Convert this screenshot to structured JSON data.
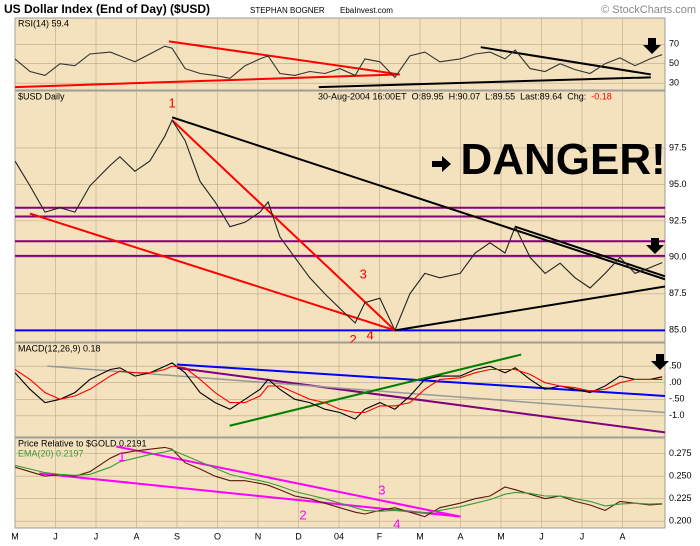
{
  "header": {
    "title": "US Dollar Index (End of Day) ($USD)",
    "author": "STEPHAN BOGNER",
    "site": "EbaInvest.com",
    "copyright": "© StockCharts.com"
  },
  "chart_data": [
    {
      "type": "line",
      "title": "RSI(14) 59.4",
      "x": [
        0,
        0.37,
        0.74,
        1.11,
        1.48,
        1.85,
        2.35,
        2.59,
        2.96,
        3.33,
        3.7,
        3.88,
        4.2,
        4.57,
        4.94,
        5.31,
        5.68,
        6.05,
        6.25,
        6.54,
        6.91,
        7.28,
        7.65,
        8.02,
        8.4,
        8.64,
        9.01,
        9.38,
        9.75,
        10.12,
        10.49,
        10.99,
        11.36,
        11.73,
        12.1,
        12.35,
        12.72,
        13.09,
        13.46,
        13.83,
        14.2,
        14.57,
        14.94,
        15.31,
        15.68,
        15.98
      ],
      "series": [
        {
          "color": "#333333",
          "values": [
            55,
            42,
            38,
            50,
            48,
            60,
            62,
            58,
            52,
            60,
            68,
            66,
            45,
            40,
            38,
            35,
            48,
            55,
            58,
            40,
            38,
            42,
            40,
            45,
            38,
            55,
            52,
            36,
            58,
            62,
            52,
            55,
            60,
            62,
            55,
            64,
            45,
            42,
            50,
            44,
            40,
            50,
            56,
            48,
            55,
            59.4
          ]
        }
      ],
      "xlim": [
        0,
        16.05
      ],
      "ylim": [
        23,
        97
      ],
      "yticks": [
        30,
        50,
        70
      ],
      "grid": true,
      "trendlines": [
        {
          "x": [
            0,
            9.5
          ],
          "y": [
            26,
            39
          ],
          "color": "#ff0000"
        },
        {
          "x": [
            3.8,
            9.5
          ],
          "y": [
            73,
            39
          ],
          "color": "#ff0000"
        },
        {
          "x": [
            7.5,
            15.7
          ],
          "y": [
            26,
            36
          ],
          "color": "#000000"
        },
        {
          "x": [
            11.5,
            15.7
          ],
          "y": [
            67,
            39
          ],
          "color": "#000000"
        }
      ]
    },
    {
      "type": "line",
      "info": [
        "30-Aug-2004 16:00ET",
        "O:89.95",
        "H:90.07",
        "L:89.55",
        "Last:89.64",
        "Chg:",
        "-0.18"
      ],
      "x": [
        0,
        0.37,
        0.74,
        1.11,
        1.48,
        1.85,
        2.35,
        2.59,
        2.96,
        3.33,
        3.7,
        3.88,
        4.2,
        4.57,
        4.94,
        5.31,
        5.68,
        6.05,
        6.25,
        6.54,
        6.91,
        7.28,
        7.65,
        8.02,
        8.4,
        8.64,
        9.01,
        9.38,
        9.75,
        10.12,
        10.49,
        10.99,
        11.36,
        11.73,
        12.1,
        12.35,
        12.72,
        13.09,
        13.46,
        13.83,
        14.2,
        14.57,
        14.94,
        15.31,
        15.68,
        15.98
      ],
      "series": [
        {
          "name": "$USD Daily",
          "color": "#222222",
          "values": [
            96.6,
            94.9,
            93.1,
            93.4,
            93.1,
            94.9,
            96.3,
            96.9,
            95.9,
            96.6,
            98.3,
            99.4,
            98.0,
            95.2,
            93.8,
            92.1,
            92.4,
            93.1,
            93.8,
            91.4,
            90.0,
            88.6,
            87.5,
            86.5,
            85.5,
            86.9,
            87.2,
            85.0,
            87.5,
            88.9,
            88.6,
            88.9,
            90.3,
            91.0,
            90.3,
            92.1,
            90.0,
            88.9,
            89.6,
            88.6,
            87.9,
            88.9,
            90.0,
            88.9,
            89.3,
            89.64
          ]
        }
      ],
      "xlim": [
        0,
        16.05
      ],
      "ylim": [
        84.2,
        101.4
      ],
      "yticks": [
        {
          "value": 85,
          "label": "85.0"
        },
        {
          "value": 87.5,
          "label": "87.5"
        },
        {
          "value": 90,
          "label": "90.0"
        },
        {
          "value": 92.5,
          "label": "92.5"
        },
        {
          "value": 95,
          "label": "95.0"
        },
        {
          "value": 97.5,
          "label": "97.5"
        }
      ],
      "grid": true,
      "hlines": [
        {
          "value": 93.4,
          "color": "#800080"
        },
        {
          "value": 92.8,
          "color": "#800080"
        },
        {
          "value": 91.1,
          "color": "#800080"
        },
        {
          "value": 90.1,
          "color": "#800080"
        },
        {
          "value": 85.0,
          "color": "#0000ff"
        }
      ],
      "trendlines": [
        {
          "x": [
            3.88,
            9.38
          ],
          "y": [
            99.4,
            85.0
          ],
          "color": "#ff0000"
        },
        {
          "x": [
            0.37,
            9.38
          ],
          "y": [
            93.0,
            85.0
          ],
          "color": "#ff0000"
        },
        {
          "x": [
            3.88,
            16.05
          ],
          "y": [
            99.6,
            88.5
          ],
          "color": "#000000"
        },
        {
          "x": [
            9.38,
            16.05
          ],
          "y": [
            85.0,
            88.0
          ],
          "color": "#000000"
        },
        {
          "x": [
            12.35,
            16.05
          ],
          "y": [
            92.1,
            88.7
          ],
          "color": "#000000"
        }
      ],
      "annotations": [
        {
          "text": "1",
          "x": 3.88,
          "y": 100.5,
          "color": "#ff0000"
        },
        {
          "text": "2",
          "x": 8.35,
          "y": 84.3,
          "color": "#ff0000"
        },
        {
          "text": "3",
          "x": 8.6,
          "y": 88.8,
          "color": "#ff0000"
        },
        {
          "text": "4",
          "x": 8.77,
          "y": 84.6,
          "color": "#ff0000"
        },
        {
          "text": "DANGER!",
          "x": 11.0,
          "y": 96.5,
          "color": "#000000"
        }
      ]
    },
    {
      "type": "line",
      "title": "MACD(12,26,9) 0.18",
      "x": [
        0,
        0.37,
        0.74,
        1.11,
        1.48,
        1.85,
        2.35,
        2.59,
        2.96,
        3.33,
        3.7,
        3.88,
        4.2,
        4.57,
        4.94,
        5.31,
        5.68,
        6.05,
        6.25,
        6.54,
        6.91,
        7.28,
        7.65,
        8.02,
        8.4,
        8.64,
        9.01,
        9.38,
        9.75,
        10.12,
        10.49,
        10.99,
        11.36,
        11.73,
        12.1,
        12.35,
        12.72,
        13.09,
        13.46,
        13.83,
        14.2,
        14.57,
        14.94,
        15.31,
        15.68,
        15.98
      ],
      "series": [
        {
          "color": "#000000",
          "values": [
            0.3,
            -0.2,
            -0.6,
            -0.5,
            -0.3,
            0.1,
            0.4,
            0.45,
            0.2,
            0.3,
            0.5,
            0.6,
            0.3,
            -0.3,
            -0.6,
            -0.8,
            -0.5,
            -0.2,
            0.1,
            -0.2,
            -0.5,
            -0.6,
            -0.8,
            -0.9,
            -1.1,
            -0.8,
            -0.6,
            -0.8,
            -0.4,
            0.1,
            0.2,
            0.2,
            0.4,
            0.5,
            0.3,
            0.45,
            0.1,
            -0.2,
            -0.1,
            -0.2,
            -0.3,
            -0.1,
            0.2,
            0.1,
            0.1,
            0.18
          ]
        },
        {
          "color": "#ff0000",
          "values": [
            0.4,
            0.1,
            -0.3,
            -0.5,
            -0.4,
            -0.2,
            0.2,
            0.35,
            0.3,
            0.3,
            0.4,
            0.5,
            0.45,
            0.1,
            -0.3,
            -0.6,
            -0.6,
            -0.4,
            -0.1,
            -0.1,
            -0.3,
            -0.5,
            -0.6,
            -0.8,
            -0.9,
            -0.9,
            -0.7,
            -0.7,
            -0.6,
            -0.2,
            0.1,
            0.15,
            0.3,
            0.4,
            0.4,
            0.4,
            0.25,
            0.0,
            -0.1,
            -0.15,
            -0.25,
            -0.2,
            0.0,
            0.1,
            0.1,
            0.1
          ]
        }
      ],
      "xlim": [
        0,
        16.05
      ],
      "ylim": [
        -1.64,
        1.2
      ],
      "yticks": [
        {
          "value": -1,
          "label": "-1.0"
        },
        {
          "value": -0.5,
          "label": "-.50"
        },
        {
          "value": 0,
          "label": ".00"
        },
        {
          "value": 0.5,
          "label": ".50"
        }
      ],
      "grid": true,
      "trendlines": [
        {
          "x": [
            4.0,
            16.05
          ],
          "y": [
            0.55,
            -0.4
          ],
          "color": "#0000ff"
        },
        {
          "x": [
            4.0,
            16.05
          ],
          "y": [
            0.45,
            -1.5
          ],
          "color": "#800080"
        },
        {
          "x": [
            0.8,
            16.05
          ],
          "y": [
            0.5,
            -0.9
          ],
          "color": "#999999"
        },
        {
          "x": [
            5.3,
            12.5
          ],
          "y": [
            -1.3,
            0.85
          ],
          "color": "#008000"
        }
      ]
    },
    {
      "type": "line",
      "x": [
        0,
        0.37,
        0.74,
        1.11,
        1.48,
        1.85,
        2.35,
        2.59,
        2.96,
        3.33,
        3.7,
        3.88,
        4.2,
        4.57,
        4.94,
        5.31,
        5.68,
        6.05,
        6.25,
        6.54,
        6.91,
        7.28,
        7.65,
        8.02,
        8.4,
        8.64,
        9.01,
        9.38,
        9.75,
        10.12,
        10.49,
        10.99,
        11.36,
        11.73,
        12.1,
        12.35,
        12.72,
        13.09,
        13.46,
        13.83,
        14.2,
        14.57,
        14.94,
        15.31,
        15.68,
        15.98
      ],
      "series": [
        {
          "name": "Price Relative to $GOLD 0.2191",
          "color": "#5a1a0a",
          "values": [
            0.26,
            0.255,
            0.25,
            0.252,
            0.25,
            0.255,
            0.27,
            0.275,
            0.278,
            0.28,
            0.282,
            0.28,
            0.265,
            0.258,
            0.25,
            0.245,
            0.245,
            0.242,
            0.24,
            0.235,
            0.228,
            0.225,
            0.22,
            0.215,
            0.21,
            0.208,
            0.212,
            0.215,
            0.21,
            0.205,
            0.215,
            0.22,
            0.225,
            0.228,
            0.238,
            0.235,
            0.23,
            0.225,
            0.228,
            0.222,
            0.218,
            0.212,
            0.222,
            0.22,
            0.218,
            0.2191
          ]
        },
        {
          "name": "EMA(20) 0.2197",
          "color": "#3a9a3a",
          "values": [
            0.262,
            0.258,
            0.254,
            0.252,
            0.251,
            0.252,
            0.26,
            0.266,
            0.27,
            0.274,
            0.277,
            0.279,
            0.273,
            0.266,
            0.259,
            0.252,
            0.248,
            0.245,
            0.243,
            0.239,
            0.233,
            0.229,
            0.225,
            0.22,
            0.215,
            0.212,
            0.211,
            0.212,
            0.211,
            0.209,
            0.212,
            0.216,
            0.22,
            0.224,
            0.23,
            0.232,
            0.231,
            0.228,
            0.228,
            0.225,
            0.222,
            0.217,
            0.219,
            0.22,
            0.219,
            0.2197
          ]
        }
      ],
      "xlim": [
        0,
        16.05
      ],
      "ylim": [
        0.1924,
        0.2924
      ],
      "yticks": [
        {
          "value": 0.2,
          "label": "0.200"
        },
        {
          "value": 0.225,
          "label": "0.225"
        },
        {
          "value": 0.25,
          "label": "0.250"
        },
        {
          "value": 0.275,
          "label": "0.275"
        }
      ],
      "grid": true,
      "xticks": [
        {
          "value": 0,
          "label": "M"
        },
        {
          "value": 1,
          "label": "J"
        },
        {
          "value": 2,
          "label": "J"
        },
        {
          "value": 3,
          "label": "A"
        },
        {
          "value": 4,
          "label": "S"
        },
        {
          "value": 5,
          "label": "O"
        },
        {
          "value": 6,
          "label": "N"
        },
        {
          "value": 7,
          "label": "D"
        },
        {
          "value": 8,
          "label": "04"
        },
        {
          "value": 9,
          "label": "F"
        },
        {
          "value": 10,
          "label": "M"
        },
        {
          "value": 11,
          "label": "A"
        },
        {
          "value": 12,
          "label": "M"
        },
        {
          "value": 13,
          "label": "J"
        },
        {
          "value": 14,
          "label": "J"
        },
        {
          "value": 15,
          "label": "A"
        }
      ],
      "trendlines": [
        {
          "x": [
            0.6,
            11.0
          ],
          "y": [
            0.253,
            0.205
          ],
          "color": "#ff00ff"
        },
        {
          "x": [
            2.5,
            11.0
          ],
          "y": [
            0.283,
            0.205
          ],
          "color": "#ff00ff"
        }
      ],
      "annotations": [
        {
          "text": "1",
          "x": 2.64,
          "y": 0.2707,
          "color": "#ff00ff"
        },
        {
          "text": "2",
          "x": 7.11,
          "y": 0.2054,
          "color": "#ff00ff"
        },
        {
          "text": "3",
          "x": 9.06,
          "y": 0.2337,
          "color": "#ff00ff"
        },
        {
          "text": "4",
          "x": 9.43,
          "y": 0.1957,
          "color": "#ff00ff"
        }
      ]
    }
  ]
}
